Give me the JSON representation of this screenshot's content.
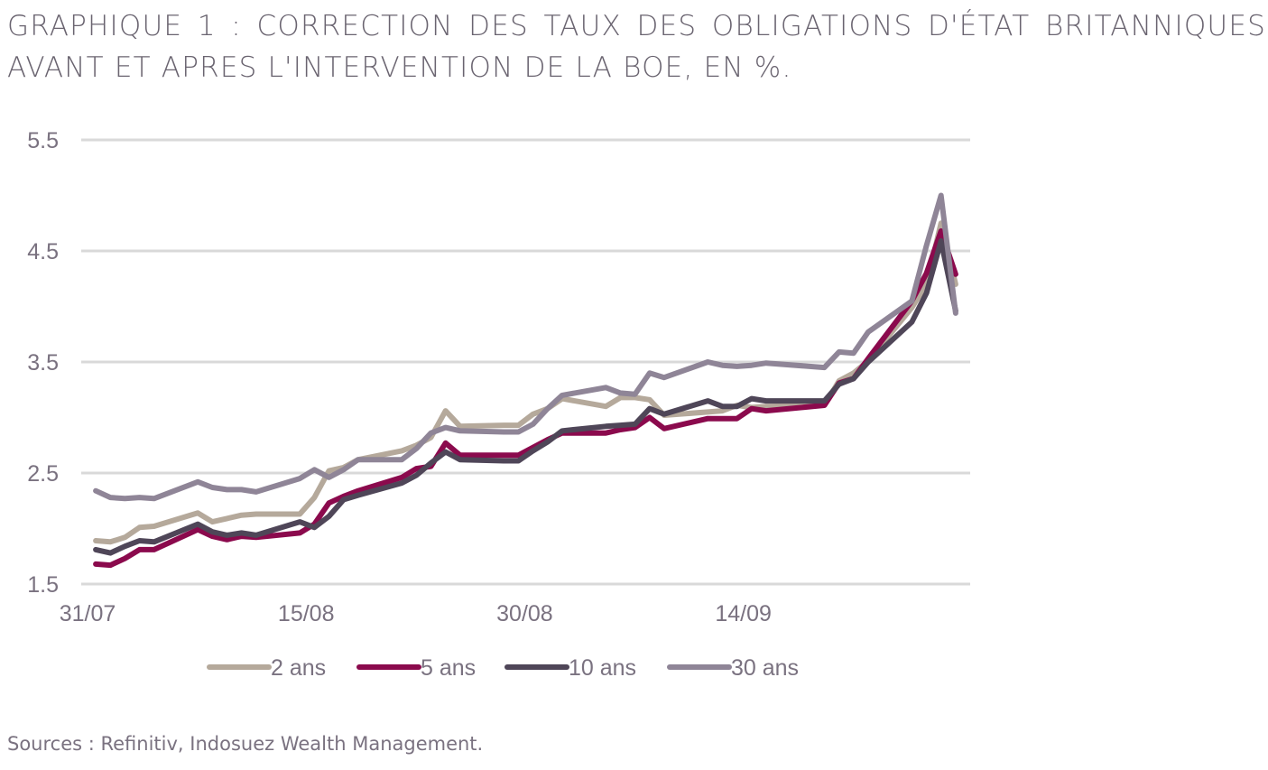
{
  "title": {
    "line1": "GRAPHIQUE 1 : CORRECTION DES TAUX DES OBLIGATIONS D'ÉTAT BRITANNIQUES",
    "line2": "AVANT ET APRES L'INTERVENTION DE LA BOE, EN %."
  },
  "source": "Sources : Refinitiv, Indosuez Wealth Management.",
  "chart_data": {
    "type": "line",
    "xlabel": "",
    "ylabel": "",
    "ylim": [
      1.5,
      5.5
    ],
    "yticks": [
      "1.5",
      "2.5",
      "3.5",
      "4.5",
      "5.5"
    ],
    "ytick_values": [
      1.5,
      2.5,
      3.5,
      4.5,
      5.5
    ],
    "x_tick_labels": [
      {
        "label": "31/07",
        "date": "2022-07-31"
      },
      {
        "label": "15/08",
        "date": "2022-08-15"
      },
      {
        "label": "30/08",
        "date": "2022-08-30"
      },
      {
        "label": "14/09",
        "date": "2022-09-14"
      }
    ],
    "x_range": [
      "2022-07-31",
      "2022-09-30"
    ],
    "grid": "horizontal",
    "legend_position": "bottom",
    "x": [
      "2022-08-01",
      "2022-08-02",
      "2022-08-03",
      "2022-08-04",
      "2022-08-05",
      "2022-08-08",
      "2022-08-09",
      "2022-08-10",
      "2022-08-11",
      "2022-08-12",
      "2022-08-15",
      "2022-08-16",
      "2022-08-17",
      "2022-08-18",
      "2022-08-19",
      "2022-08-22",
      "2022-08-23",
      "2022-08-24",
      "2022-08-25",
      "2022-08-26",
      "2022-08-29",
      "2022-08-30",
      "2022-08-31",
      "2022-09-01",
      "2022-09-02",
      "2022-09-05",
      "2022-09-06",
      "2022-09-07",
      "2022-09-08",
      "2022-09-09",
      "2022-09-12",
      "2022-09-13",
      "2022-09-14",
      "2022-09-15",
      "2022-09-16",
      "2022-09-20",
      "2022-09-21",
      "2022-09-22",
      "2022-09-23",
      "2022-09-26",
      "2022-09-27",
      "2022-09-28",
      "2022-09-29"
    ],
    "series": [
      {
        "name": "2 ans",
        "color": "#b5a99b",
        "values": [
          1.89,
          1.88,
          1.92,
          2.01,
          2.02,
          2.14,
          2.06,
          2.09,
          2.12,
          2.13,
          2.13,
          2.28,
          2.52,
          2.55,
          2.62,
          2.7,
          2.75,
          2.82,
          3.06,
          2.92,
          2.93,
          2.93,
          3.03,
          3.08,
          3.17,
          3.1,
          3.18,
          3.18,
          3.16,
          3.02,
          3.05,
          3.06,
          3.11,
          3.09,
          3.1,
          3.11,
          3.33,
          3.4,
          3.51,
          3.99,
          4.2,
          4.75,
          4.2
        ]
      },
      {
        "name": "5 ans",
        "color": "#8b0a4d",
        "values": [
          1.68,
          1.67,
          1.73,
          1.81,
          1.81,
          1.99,
          1.93,
          1.9,
          1.93,
          1.92,
          1.96,
          2.04,
          2.23,
          2.29,
          2.34,
          2.46,
          2.54,
          2.56,
          2.77,
          2.66,
          2.66,
          2.66,
          2.73,
          2.8,
          2.86,
          2.86,
          2.89,
          2.91,
          3.0,
          2.9,
          2.99,
          2.99,
          2.99,
          3.08,
          3.06,
          3.11,
          3.31,
          3.35,
          3.53,
          4.05,
          4.3,
          4.68,
          4.29
        ]
      },
      {
        "name": "10 ans",
        "color": "#4f4658",
        "values": [
          1.81,
          1.78,
          1.84,
          1.89,
          1.88,
          2.04,
          1.97,
          1.94,
          1.96,
          1.94,
          2.06,
          2.01,
          2.11,
          2.26,
          2.3,
          2.41,
          2.48,
          2.59,
          2.69,
          2.62,
          2.61,
          2.61,
          2.7,
          2.78,
          2.88,
          2.92,
          2.93,
          2.94,
          3.08,
          3.03,
          3.15,
          3.1,
          3.1,
          3.17,
          3.15,
          3.15,
          3.3,
          3.35,
          3.5,
          3.86,
          4.12,
          4.59,
          3.96
        ]
      },
      {
        "name": "30 ans",
        "color": "#8f8597",
        "values": [
          2.34,
          2.28,
          2.27,
          2.28,
          2.27,
          2.42,
          2.37,
          2.35,
          2.35,
          2.33,
          2.45,
          2.53,
          2.46,
          2.53,
          2.62,
          2.62,
          2.72,
          2.86,
          2.91,
          2.88,
          2.87,
          2.87,
          2.94,
          3.08,
          3.2,
          3.27,
          3.22,
          3.21,
          3.4,
          3.36,
          3.5,
          3.47,
          3.46,
          3.47,
          3.49,
          3.45,
          3.59,
          3.58,
          3.77,
          4.05,
          4.55,
          5.0,
          3.94
        ]
      }
    ]
  }
}
